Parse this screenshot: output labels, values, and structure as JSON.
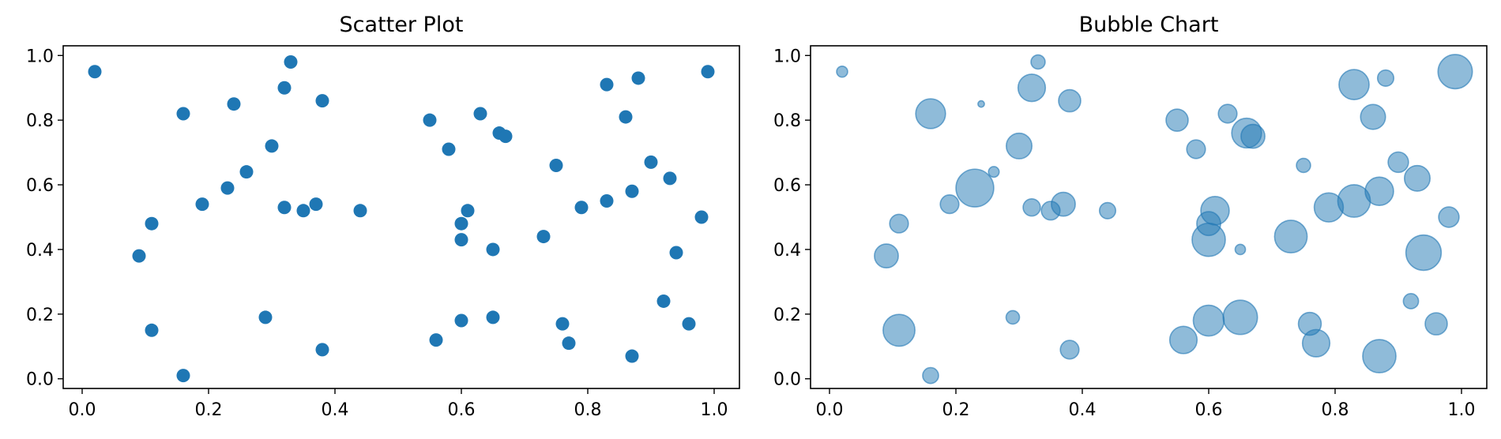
{
  "chart_data": [
    {
      "type": "scatter",
      "title": "Scatter Plot",
      "xlabel": "",
      "ylabel": "",
      "xlim": [
        -0.03,
        1.04
      ],
      "ylim": [
        -0.03,
        1.03
      ],
      "xticks": [
        "0.0",
        "0.2",
        "0.4",
        "0.6",
        "0.8",
        "1.0"
      ],
      "yticks": [
        "0.0",
        "0.2",
        "0.4",
        "0.6",
        "0.8",
        "1.0"
      ],
      "grid": false,
      "color": "#1f77b4",
      "x": [
        0.02,
        0.09,
        0.11,
        0.11,
        0.16,
        0.16,
        0.19,
        0.23,
        0.24,
        0.26,
        0.29,
        0.3,
        0.32,
        0.32,
        0.33,
        0.35,
        0.37,
        0.38,
        0.38,
        0.44,
        0.55,
        0.56,
        0.58,
        0.6,
        0.6,
        0.6,
        0.61,
        0.63,
        0.65,
        0.65,
        0.66,
        0.67,
        0.73,
        0.75,
        0.76,
        0.77,
        0.79,
        0.83,
        0.83,
        0.86,
        0.87,
        0.87,
        0.88,
        0.9,
        0.92,
        0.93,
        0.94,
        0.96,
        0.98,
        0.99
      ],
      "y": [
        0.95,
        0.38,
        0.48,
        0.15,
        0.82,
        0.01,
        0.54,
        0.59,
        0.85,
        0.64,
        0.19,
        0.72,
        0.53,
        0.9,
        0.98,
        0.52,
        0.54,
        0.09,
        0.86,
        0.52,
        0.8,
        0.12,
        0.71,
        0.18,
        0.48,
        0.43,
        0.52,
        0.82,
        0.4,
        0.19,
        0.76,
        0.75,
        0.44,
        0.66,
        0.17,
        0.11,
        0.53,
        0.55,
        0.91,
        0.81,
        0.58,
        0.07,
        0.93,
        0.67,
        0.24,
        0.62,
        0.39,
        0.17,
        0.5,
        0.95
      ]
    },
    {
      "type": "scatter",
      "title": "Bubble Chart",
      "xlabel": "",
      "ylabel": "",
      "xlim": [
        -0.03,
        1.04
      ],
      "ylim": [
        -0.03,
        1.03
      ],
      "xticks": [
        "0.0",
        "0.2",
        "0.4",
        "0.6",
        "0.8",
        "1.0"
      ],
      "yticks": [
        "0.0",
        "0.2",
        "0.4",
        "0.6",
        "0.8",
        "1.0"
      ],
      "grid": false,
      "color": "#1f77b4",
      "opacity": 0.5,
      "x": [
        0.02,
        0.09,
        0.11,
        0.11,
        0.16,
        0.16,
        0.19,
        0.23,
        0.24,
        0.26,
        0.29,
        0.3,
        0.32,
        0.32,
        0.33,
        0.35,
        0.37,
        0.38,
        0.38,
        0.44,
        0.55,
        0.56,
        0.58,
        0.6,
        0.6,
        0.6,
        0.61,
        0.63,
        0.65,
        0.65,
        0.66,
        0.67,
        0.73,
        0.75,
        0.76,
        0.77,
        0.79,
        0.83,
        0.83,
        0.86,
        0.87,
        0.87,
        0.88,
        0.9,
        0.92,
        0.93,
        0.94,
        0.96,
        0.98,
        0.99
      ],
      "y": [
        0.95,
        0.38,
        0.48,
        0.15,
        0.82,
        0.01,
        0.54,
        0.59,
        0.85,
        0.64,
        0.19,
        0.72,
        0.53,
        0.9,
        0.98,
        0.52,
        0.54,
        0.09,
        0.86,
        0.52,
        0.8,
        0.12,
        0.71,
        0.18,
        0.48,
        0.43,
        0.52,
        0.82,
        0.4,
        0.19,
        0.76,
        0.75,
        0.44,
        0.66,
        0.17,
        0.11,
        0.53,
        0.55,
        0.91,
        0.81,
        0.58,
        0.07,
        0.93,
        0.67,
        0.24,
        0.62,
        0.39,
        0.17,
        0.5,
        0.95
      ],
      "sizes": [
        0.18,
        0.55,
        0.4,
        0.78,
        0.72,
        0.32,
        0.4,
        0.95,
        0.05,
        0.17,
        0.25,
        0.6,
        0.36,
        0.65,
        0.27,
        0.4,
        0.55,
        0.4,
        0.5,
        0.33,
        0.5,
        0.65,
        0.4,
        0.75,
        0.55,
        0.82,
        0.68,
        0.4,
        0.16,
        0.85,
        0.72,
        0.55,
        0.8,
        0.27,
        0.52,
        0.65,
        0.7,
        0.8,
        0.73,
        0.58,
        0.68,
        0.82,
        0.33,
        0.45,
        0.3,
        0.6,
        0.88,
        0.5,
        0.45,
        0.85
      ]
    }
  ]
}
